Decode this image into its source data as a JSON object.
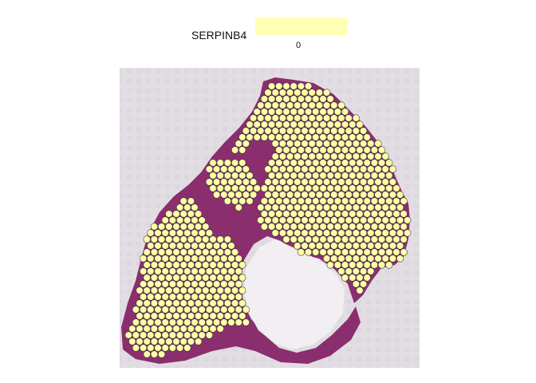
{
  "chart_data": {
    "type": "scatter",
    "title": "",
    "legend": {
      "title": "SERPINB4",
      "placement": "top-center",
      "ticks": [
        "0"
      ],
      "color": "#ffffb3"
    },
    "spot_color": "#ffffa8",
    "spot_stroke": "#3a3a3a",
    "tissue_color": "#8a2e6e",
    "background_color": "#e2dde3",
    "axes_visible": false,
    "grid": false,
    "spot_value": 0
  }
}
